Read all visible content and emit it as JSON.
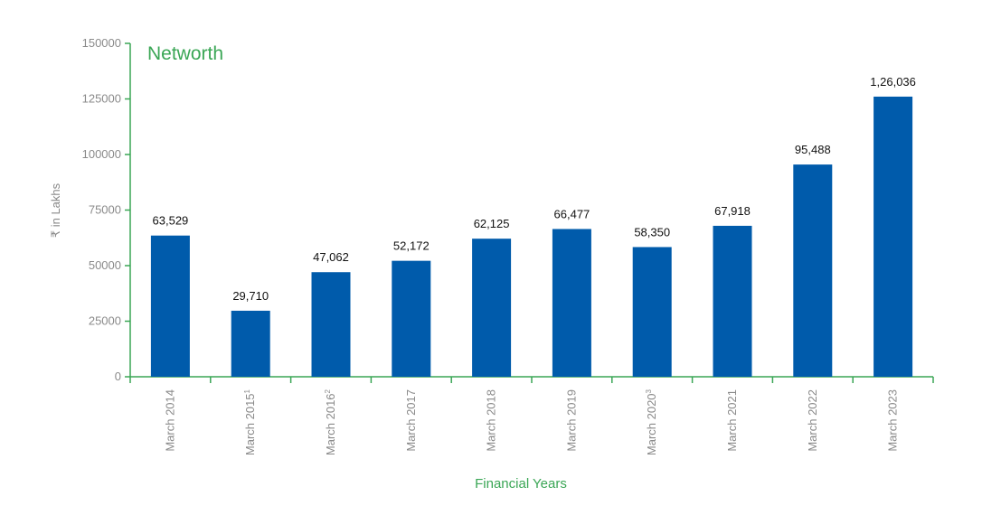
{
  "chart_data": {
    "type": "bar",
    "title": "Networth",
    "xlabel": "Financial Years",
    "ylabel": "₹ in Lakhs",
    "ylim": [
      0,
      150000
    ],
    "yticks": [
      "0",
      "25000",
      "50000",
      "75000",
      "100000",
      "125000",
      "150000"
    ],
    "grid": false,
    "categories": [
      {
        "text": "March 2014",
        "sup": ""
      },
      {
        "text": "March 2015",
        "sup": "1"
      },
      {
        "text": "March 2016",
        "sup": "2"
      },
      {
        "text": "March 2017",
        "sup": ""
      },
      {
        "text": "March 2018",
        "sup": ""
      },
      {
        "text": "March 2019",
        "sup": ""
      },
      {
        "text": "March 2020",
        "sup": "3"
      },
      {
        "text": "March 2021",
        "sup": ""
      },
      {
        "text": "March 2022",
        "sup": ""
      },
      {
        "text": "March 2023",
        "sup": ""
      }
    ],
    "values": [
      63529,
      29710,
      47062,
      52172,
      62125,
      66477,
      58350,
      67918,
      95488,
      126036
    ],
    "data_labels": [
      "63,529",
      "29,710",
      "47,062",
      "52,172",
      "62,125",
      "66,477",
      "58,350",
      "67,918",
      "95,488",
      "1,26,036"
    ],
    "colors": {
      "bar": "#005bab",
      "axis": "#3aa655",
      "title": "#3aa655",
      "text": "#8a8a8a"
    }
  }
}
